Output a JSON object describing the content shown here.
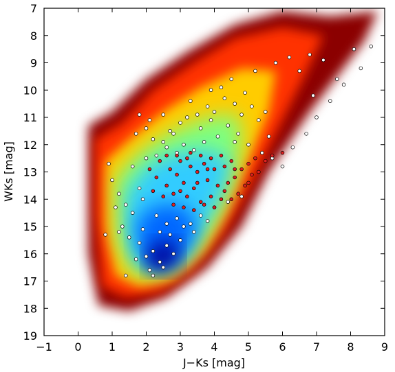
{
  "chart_data": {
    "type": "scatter",
    "title": "",
    "xlabel": "J−Ks [mag]",
    "ylabel": "WKs [mag]",
    "xlim": [
      -1,
      9
    ],
    "ylim": [
      19,
      7
    ],
    "y_inverted": true,
    "grid": false,
    "legend": "none",
    "xticks": [
      -1,
      0,
      1,
      2,
      3,
      4,
      5,
      6,
      7,
      8,
      9
    ],
    "yticks": [
      7,
      8,
      9,
      10,
      11,
      12,
      13,
      14,
      15,
      16,
      17,
      18,
      19
    ],
    "density_colormap": [
      "#8b0000",
      "#ff3300",
      "#ffcc00",
      "#ffff66",
      "#7fff7f",
      "#33ccff",
      "#0066ff",
      "#000099"
    ],
    "series": [
      {
        "marker_color": "#ffffff",
        "points": [
          [
            0.9,
            12.7
          ],
          [
            1.0,
            13.3
          ],
          [
            1.2,
            13.8
          ],
          [
            1.4,
            14.2
          ],
          [
            1.6,
            12.8
          ],
          [
            1.8,
            13.6
          ],
          [
            1.9,
            14.0
          ],
          [
            2.0,
            12.5
          ],
          [
            1.7,
            11.6
          ],
          [
            2.2,
            11.8
          ],
          [
            2.5,
            11.9
          ],
          [
            2.7,
            11.5
          ],
          [
            3.0,
            11.2
          ],
          [
            3.2,
            11.0
          ],
          [
            3.5,
            10.9
          ],
          [
            3.8,
            10.6
          ],
          [
            4.0,
            10.8
          ],
          [
            4.3,
            10.3
          ],
          [
            4.6,
            10.5
          ],
          [
            4.9,
            10.1
          ],
          [
            5.1,
            10.6
          ],
          [
            5.3,
            11.1
          ],
          [
            4.4,
            11.3
          ],
          [
            4.1,
            11.7
          ],
          [
            3.7,
            11.9
          ],
          [
            3.4,
            12.2
          ],
          [
            2.9,
            12.3
          ],
          [
            2.6,
            12.1
          ],
          [
            2.3,
            12.4
          ],
          [
            2.8,
            11.6
          ],
          [
            3.6,
            11.4
          ],
          [
            4.7,
            11.6
          ],
          [
            5.0,
            12.0
          ],
          [
            5.4,
            12.3
          ],
          [
            5.6,
            11.7
          ],
          [
            4.2,
            9.9
          ],
          [
            3.9,
            10.0
          ],
          [
            4.5,
            9.6
          ],
          [
            5.2,
            9.3
          ],
          [
            5.8,
            9.0
          ],
          [
            6.2,
            8.8
          ],
          [
            6.8,
            8.7
          ],
          [
            7.2,
            8.9
          ],
          [
            8.1,
            8.5
          ],
          [
            6.5,
            9.3
          ],
          [
            1.3,
            15.0
          ],
          [
            1.5,
            15.4
          ],
          [
            1.8,
            15.6
          ],
          [
            2.0,
            16.1
          ],
          [
            2.2,
            15.9
          ],
          [
            2.4,
            16.3
          ],
          [
            2.6,
            15.7
          ],
          [
            2.8,
            16.0
          ],
          [
            3.0,
            15.5
          ],
          [
            2.5,
            16.5
          ],
          [
            2.1,
            16.6
          ],
          [
            2.7,
            15.3
          ],
          [
            3.1,
            15.0
          ],
          [
            1.4,
            16.8
          ],
          [
            1.2,
            15.2
          ],
          [
            0.8,
            15.3
          ],
          [
            1.6,
            14.5
          ],
          [
            2.3,
            14.6
          ],
          [
            2.9,
            14.7
          ],
          [
            3.3,
            14.9
          ],
          [
            3.6,
            14.6
          ],
          [
            4.0,
            14.3
          ],
          [
            4.4,
            14.1
          ],
          [
            4.8,
            13.9
          ],
          [
            3.8,
            14.8
          ],
          [
            3.4,
            15.2
          ],
          [
            2.6,
            14.9
          ],
          [
            1.9,
            15.1
          ],
          [
            2.2,
            16.8
          ],
          [
            1.7,
            16.2
          ],
          [
            2.4,
            15.2
          ],
          [
            1.1,
            14.3
          ],
          [
            4.6,
            11.9
          ],
          [
            3.1,
            12.0
          ],
          [
            2.0,
            11.4
          ],
          [
            1.8,
            10.9
          ],
          [
            5.5,
            10.8
          ],
          [
            5.7,
            12.5
          ],
          [
            6.0,
            12.8
          ],
          [
            6.3,
            12.1
          ],
          [
            6.7,
            11.6
          ],
          [
            7.0,
            11.0
          ],
          [
            7.4,
            10.4
          ],
          [
            7.8,
            9.8
          ],
          [
            8.3,
            9.2
          ],
          [
            8.6,
            8.4
          ],
          [
            3.3,
            10.4
          ],
          [
            2.5,
            10.9
          ],
          [
            2.1,
            11.1
          ],
          [
            3.9,
            11.1
          ],
          [
            4.8,
            10.9
          ],
          [
            6.9,
            10.2
          ],
          [
            7.6,
            9.6
          ]
        ]
      },
      {
        "marker_color": "#e02020",
        "points": [
          [
            2.1,
            12.9
          ],
          [
            2.3,
            13.2
          ],
          [
            2.4,
            12.6
          ],
          [
            2.6,
            13.5
          ],
          [
            2.7,
            12.9
          ],
          [
            2.8,
            13.8
          ],
          [
            2.9,
            13.1
          ],
          [
            3.0,
            12.6
          ],
          [
            3.1,
            13.4
          ],
          [
            3.2,
            13.9
          ],
          [
            3.3,
            12.8
          ],
          [
            3.4,
            13.6
          ],
          [
            3.5,
            13.0
          ],
          [
            3.6,
            14.1
          ],
          [
            3.7,
            12.7
          ],
          [
            3.8,
            13.3
          ],
          [
            3.9,
            13.9
          ],
          [
            4.0,
            12.9
          ],
          [
            4.1,
            13.5
          ],
          [
            4.2,
            14.0
          ],
          [
            4.3,
            12.8
          ],
          [
            4.4,
            13.4
          ],
          [
            4.5,
            12.6
          ],
          [
            4.6,
            13.2
          ],
          [
            4.7,
            13.8
          ],
          [
            4.8,
            12.9
          ],
          [
            4.9,
            13.5
          ],
          [
            5.0,
            12.7
          ],
          [
            5.1,
            13.1
          ],
          [
            5.2,
            12.5
          ],
          [
            5.3,
            13.0
          ],
          [
            5.5,
            12.6
          ],
          [
            5.7,
            12.4
          ],
          [
            6.0,
            12.3
          ],
          [
            2.5,
            13.9
          ],
          [
            2.8,
            14.2
          ],
          [
            3.1,
            14.3
          ],
          [
            3.4,
            14.4
          ],
          [
            3.7,
            14.2
          ],
          [
            4.0,
            14.3
          ],
          [
            3.3,
            12.3
          ],
          [
            3.6,
            12.4
          ],
          [
            3.9,
            12.5
          ],
          [
            4.2,
            12.4
          ],
          [
            2.2,
            13.7
          ],
          [
            2.9,
            12.4
          ],
          [
            3.2,
            12.5
          ],
          [
            3.5,
            13.4
          ],
          [
            4.3,
            13.7
          ],
          [
            4.6,
            12.9
          ],
          [
            2.6,
            12.4
          ],
          [
            3.0,
            13.7
          ],
          [
            3.8,
            12.9
          ],
          [
            4.5,
            14.0
          ],
          [
            5.0,
            13.4
          ]
        ]
      }
    ]
  }
}
